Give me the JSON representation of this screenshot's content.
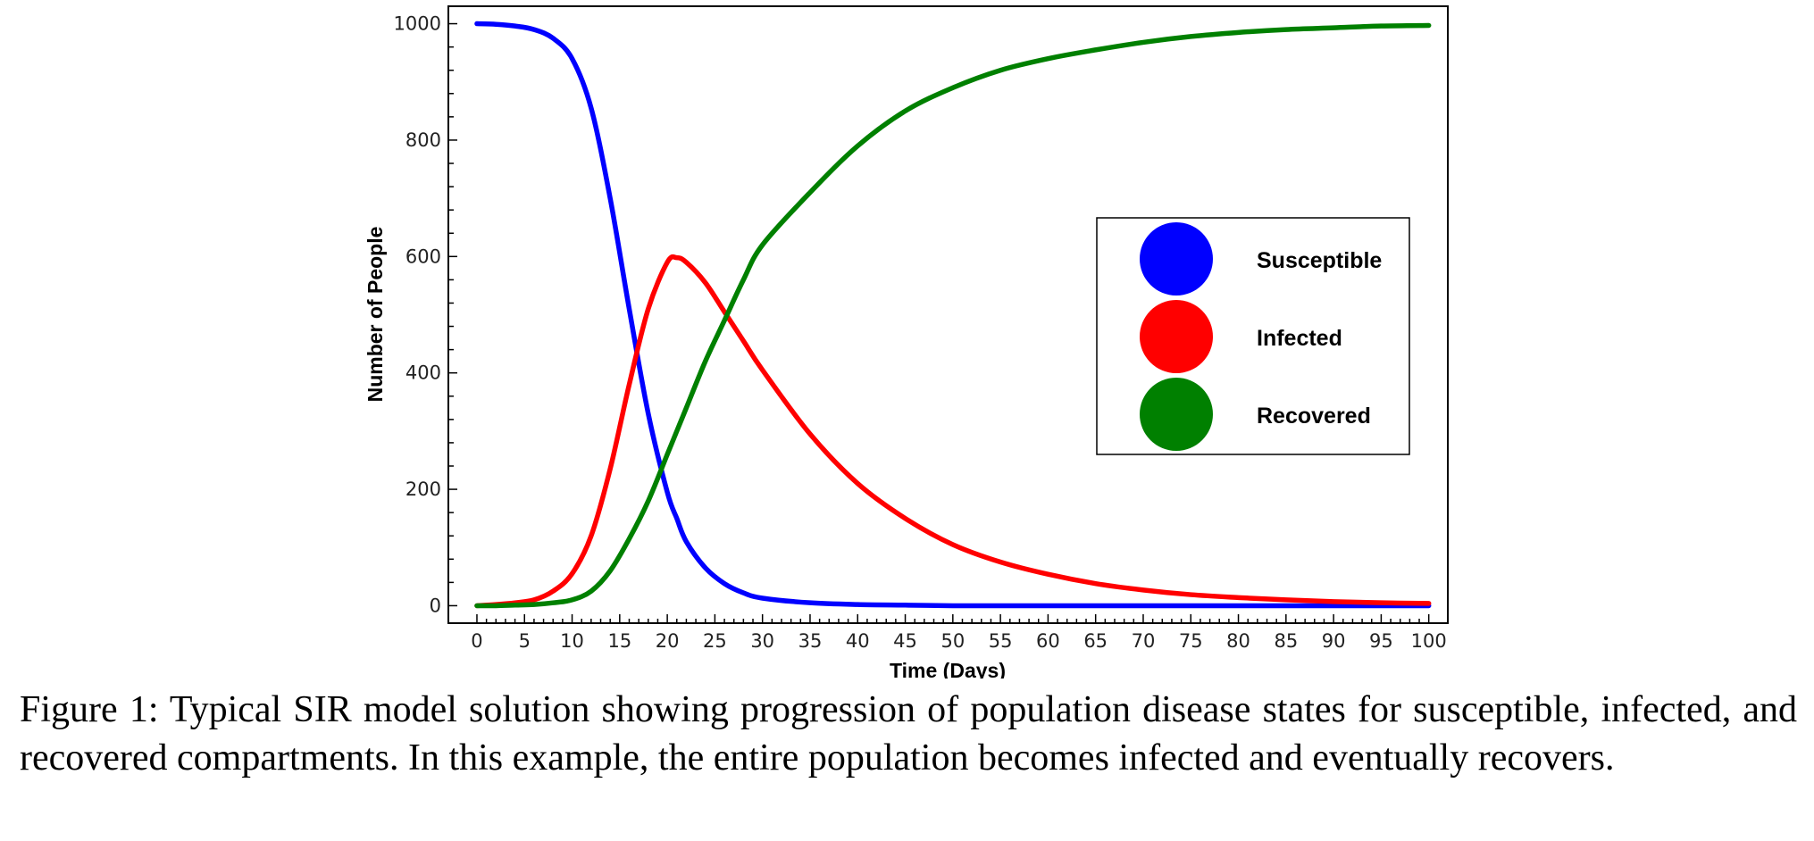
{
  "chart_data": {
    "type": "line",
    "xlabel": "Time (Days)",
    "ylabel": "Number of People",
    "xlim": [
      -3,
      102
    ],
    "ylim": [
      -30,
      1030
    ],
    "x_ticks": [
      0,
      5,
      10,
      15,
      20,
      25,
      30,
      35,
      40,
      45,
      50,
      55,
      60,
      65,
      70,
      75,
      80,
      85,
      90,
      95,
      100
    ],
    "y_ticks": [
      0,
      200,
      400,
      600,
      800,
      1000
    ],
    "grid": false,
    "legend_position": "right",
    "x": [
      0,
      2,
      4,
      6,
      8,
      10,
      12,
      14,
      16,
      18,
      20,
      21,
      22,
      24,
      26,
      28,
      30,
      35,
      40,
      45,
      50,
      55,
      60,
      65,
      70,
      75,
      80,
      85,
      90,
      95,
      100
    ],
    "series": [
      {
        "name": "Susceptible",
        "color": "#0000ff",
        "values": [
          1000,
          999,
          996,
          990,
          975,
          940,
          855,
          700,
          510,
          330,
          195,
          150,
          110,
          65,
          38,
          22,
          13,
          5,
          2,
          1,
          0,
          0,
          0,
          0,
          0,
          0,
          0,
          0,
          0,
          0,
          0
        ]
      },
      {
        "name": "Infected",
        "color": "#ff0000",
        "values": [
          0,
          2,
          5,
          10,
          25,
          55,
          120,
          235,
          380,
          510,
          590,
          598,
          590,
          555,
          505,
          455,
          405,
          295,
          210,
          150,
          105,
          75,
          54,
          38,
          27,
          19,
          14,
          10,
          7,
          5,
          4
        ]
      },
      {
        "name": "Recovered",
        "color": "#008000",
        "values": [
          0,
          0,
          1,
          2,
          5,
          10,
          25,
          60,
          115,
          180,
          260,
          300,
          340,
          420,
          490,
          560,
          620,
          710,
          790,
          850,
          890,
          920,
          940,
          955,
          968,
          978,
          985,
          990,
          993,
          996,
          997
        ]
      }
    ]
  },
  "caption": "Figure 1: Typical SIR model solution showing progression of population disease states for susceptible, infected, and recovered compartments. In this example, the entire population becomes infected and eventually recovers."
}
